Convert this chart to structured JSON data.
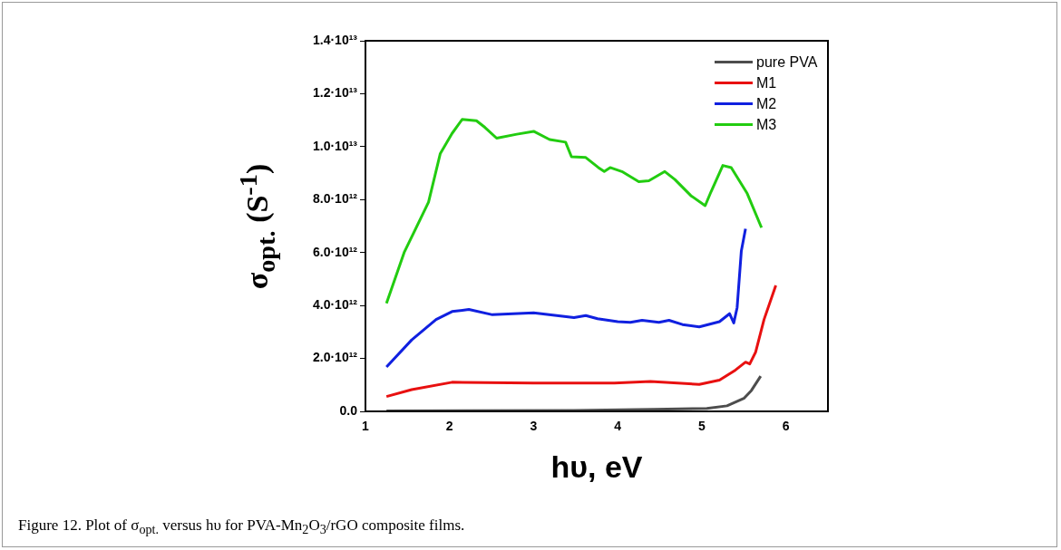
{
  "chart_data": {
    "type": "line",
    "xlabel": "hυ, eV",
    "ylabel": "σ$_{opt.}$ (S$^{-1}$)",
    "annotations": [
      "Figure 12. Plot of σ$_{opt.}$ versus hυ for PVA-Mn$_{2}$O$_{3}$/rGO composite films."
    ],
    "xlim": [
      1,
      6.5
    ],
    "xticks": [
      1,
      2,
      3,
      4,
      5,
      6
    ],
    "ylim": [
      0,
      14000000000000.0
    ],
    "yticks": [
      {
        "value": 0,
        "label": "0.0"
      },
      {
        "value": 2000000000000.0,
        "label": "2.0·10¹²"
      },
      {
        "value": 4000000000000.0,
        "label": "4.0·10¹²"
      },
      {
        "value": 6000000000000.0,
        "label": "6.0·10¹²"
      },
      {
        "value": 8000000000000.0,
        "label": "8.0·10¹²"
      },
      {
        "value": 10000000000000.0,
        "label": "1.0·10¹³"
      },
      {
        "value": 12000000000000.0,
        "label": "1.2·10¹³"
      },
      {
        "value": 14000000000000.0,
        "label": "1.4·10¹³"
      }
    ],
    "legend": "top right",
    "marker": "none",
    "series": [
      {
        "name": "pure PVA",
        "color": "#4d4d4d",
        "x": [
          1.25,
          3.48,
          4.44,
          5.06,
          5.3,
          5.5,
          5.59,
          5.7
        ],
        "values": [
          20000000000.0,
          30000000000.0,
          80000000000.0,
          110000000000.0,
          210000000000.0,
          490000000000.0,
          790000000000.0,
          1330000000000.0
        ]
      },
      {
        "name": "M1",
        "color": "#e81010",
        "x": [
          1.25,
          1.55,
          2.03,
          3.0,
          3.96,
          4.39,
          4.97,
          5.21,
          5.4,
          5.52,
          5.57,
          5.64,
          5.74,
          5.88
        ],
        "values": [
          560000000000.0,
          820000000000.0,
          1100000000000.0,
          1070000000000.0,
          1070000000000.0,
          1130000000000.0,
          1020000000000.0,
          1180000000000.0,
          1560000000000.0,
          1860000000000.0,
          1790000000000.0,
          2240000000000.0,
          3470000000000.0,
          4760000000000.0
        ]
      },
      {
        "name": "M2",
        "color": "#1020e0",
        "x": [
          1.25,
          1.55,
          1.84,
          2.03,
          2.23,
          2.51,
          3.0,
          3.48,
          3.62,
          3.76,
          4.0,
          4.15,
          4.29,
          4.49,
          4.61,
          4.77,
          4.97,
          5.21,
          5.33,
          5.38,
          5.42,
          5.47,
          5.52
        ],
        "values": [
          1680000000000.0,
          2700000000000.0,
          3470000000000.0,
          3770000000000.0,
          3850000000000.0,
          3650000000000.0,
          3720000000000.0,
          3540000000000.0,
          3620000000000.0,
          3500000000000.0,
          3390000000000.0,
          3360000000000.0,
          3440000000000.0,
          3360000000000.0,
          3440000000000.0,
          3280000000000.0,
          3190000000000.0,
          3390000000000.0,
          3690000000000.0,
          3340000000000.0,
          3920000000000.0,
          6060000000000.0,
          6900000000000.0
        ]
      },
      {
        "name": "M3",
        "color": "#22cc10",
        "x": [
          1.25,
          1.46,
          1.75,
          1.89,
          2.03,
          2.15,
          2.32,
          2.42,
          2.56,
          2.8,
          3.0,
          3.19,
          3.38,
          3.45,
          3.62,
          3.77,
          3.84,
          3.91,
          4.05,
          4.25,
          4.37,
          4.56,
          4.68,
          4.87,
          5.04,
          5.11,
          5.25,
          5.35,
          5.54,
          5.71
        ],
        "values": [
          4080000000000.0,
          6000000000000.0,
          7900000000000.0,
          9740000000000.0,
          10500000000000.0,
          11030000000000.0,
          10980000000000.0,
          10730000000000.0,
          10320000000000.0,
          10470000000000.0,
          10580000000000.0,
          10270000000000.0,
          10170000000000.0,
          9620000000000.0,
          9590000000000.0,
          9210000000000.0,
          9060000000000.0,
          9210000000000.0,
          9060000000000.0,
          8680000000000.0,
          8710000000000.0,
          9060000000000.0,
          8760000000000.0,
          8150000000000.0,
          7770000000000.0,
          8300000000000.0,
          9290000000000.0,
          9210000000000.0,
          8230000000000.0,
          6940000000000.0
        ]
      }
    ]
  }
}
